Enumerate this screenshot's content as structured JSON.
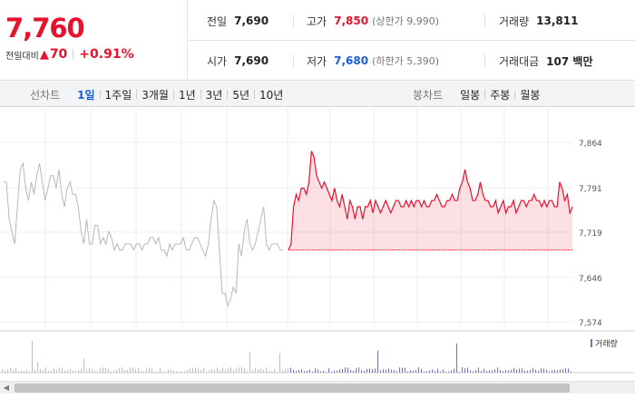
{
  "quote": {
    "current_price": "7,760",
    "change_label": "전일대비",
    "change_icon": "up-triangle-icon",
    "change_abs": "70",
    "change_pct": "+0.91%",
    "up_color": "#e8112d",
    "down_color": "#1a5fd6"
  },
  "stats": {
    "prev_close": {
      "label": "전일",
      "value": "7,690"
    },
    "high": {
      "label": "고가",
      "value": "7,850",
      "limit": "(상한가 9,990)"
    },
    "volume": {
      "label": "거래량",
      "value": "13,811"
    },
    "open": {
      "label": "시가",
      "value": "7,690"
    },
    "low": {
      "label": "저가",
      "value": "7,680",
      "limit": "(하한가 5,390)"
    },
    "amount": {
      "label": "거래대금",
      "value": "107 백만"
    }
  },
  "toolbar": {
    "line_label": "선차트",
    "line_options": [
      "1일",
      "1주일",
      "3개월",
      "1년",
      "3년",
      "5년",
      "10년"
    ],
    "line_active": "1일",
    "candle_label": "봉차트",
    "candle_options": [
      "일봉",
      "주봉",
      "월봉"
    ]
  },
  "chart": {
    "legend_volume": "거래량",
    "volume_color": "#7a6cc8"
  },
  "chart_data": {
    "type": "line",
    "ylim": [
      7574,
      7864
    ],
    "y_ticks": [
      "7,864",
      "7,791",
      "7,719",
      "7,646",
      "7,574"
    ],
    "y_tick_values": [
      7864,
      7791,
      7719,
      7646,
      7574
    ],
    "grid": true,
    "baseline": 7690,
    "series": [
      {
        "values": [
          7800,
          7800,
          7740,
          7720,
          7700,
          7760,
          7820,
          7830,
          7790,
          7770,
          7800,
          7780,
          7810,
          7830,
          7800,
          7770,
          7790,
          7810,
          7810,
          7790,
          7820,
          7780,
          7760,
          7790,
          7800,
          7780,
          7780,
          7760,
          7720,
          7700,
          7740,
          7700,
          7700,
          7730,
          7730,
          7700,
          7710,
          7700,
          7720,
          7710,
          7690,
          7700,
          7690,
          7690,
          7700,
          7700,
          7700,
          7690,
          7700,
          7700,
          7690,
          7700,
          7700,
          7710,
          7710,
          7700,
          7710,
          7690,
          7690,
          7680,
          7700,
          7690,
          7700,
          7700,
          7700,
          7710,
          7690,
          7690,
          7700,
          7710,
          7710,
          7700,
          7690,
          7680,
          7700,
          7740,
          7770,
          7760,
          7690,
          7620,
          7620,
          7600,
          7610,
          7630,
          7620,
          7700,
          7680,
          7720,
          7740,
          7700,
          7690,
          7700,
          7720,
          7740,
          7760,
          7700,
          7690,
          7700,
          7700,
          7700,
          7690,
          7690
        ]
      },
      {
        "values": [
          7690,
          7700,
          7760,
          7780,
          7770,
          7790,
          7790,
          7780,
          7800,
          7850,
          7840,
          7810,
          7800,
          7790,
          7800,
          7790,
          7780,
          7770,
          7790,
          7770,
          7760,
          7780,
          7760,
          7740,
          7770,
          7760,
          7740,
          7760,
          7760,
          7740,
          7760,
          7760,
          7770,
          7750,
          7770,
          7760,
          7750,
          7760,
          7770,
          7760,
          7750,
          7760,
          7770,
          7770,
          7760,
          7760,
          7770,
          7760,
          7770,
          7760,
          7770,
          7770,
          7760,
          7770,
          7760,
          7760,
          7770,
          7770,
          7780,
          7770,
          7760,
          7760,
          7770,
          7770,
          7780,
          7770,
          7770,
          7790,
          7800,
          7820,
          7800,
          7790,
          7770,
          7770,
          7780,
          7800,
          7780,
          7770,
          7770,
          7760,
          7760,
          7770,
          7750,
          7760,
          7770,
          7750,
          7760,
          7760,
          7770,
          7750,
          7760,
          7770,
          7770,
          7760,
          7770,
          7770,
          7780,
          7770,
          7770,
          7760,
          7770,
          7760,
          7770,
          7770,
          7760,
          7760,
          7800,
          7790,
          7770,
          7780,
          7750,
          7760
        ]
      }
    ]
  }
}
